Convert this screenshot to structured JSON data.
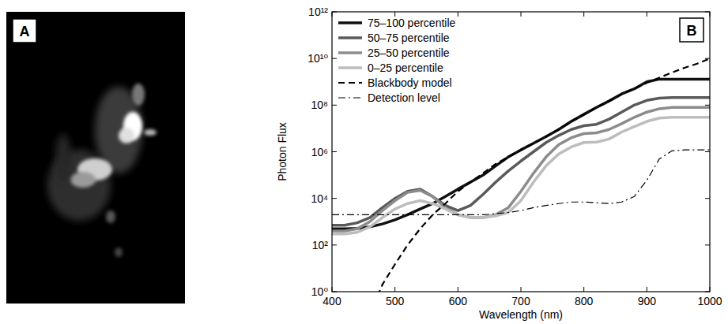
{
  "image_panel": {
    "label": "A"
  },
  "chart_data": {
    "type": "line",
    "panel_label": "B",
    "x_label": "Wavelength (nm)",
    "y_label": "Photon Flux",
    "x": [
      400,
      420,
      440,
      460,
      480,
      500,
      520,
      540,
      560,
      580,
      600,
      620,
      640,
      660,
      680,
      700,
      720,
      740,
      760,
      780,
      800,
      820,
      840,
      860,
      880,
      900,
      920,
      940,
      960,
      980,
      1000
    ],
    "series": [
      {
        "name": "75–100 percentile",
        "color": "#111111",
        "line_style": "solid",
        "values": [
          500,
          500,
          520,
          600,
          800,
          1200,
          2000,
          3500,
          6000,
          12000,
          25000,
          50000,
          100000,
          250000,
          600000,
          1200000,
          2300000,
          4500000,
          9000000,
          20000000,
          40000000,
          80000000,
          150000000,
          300000000,
          500000000,
          1000000000,
          1300000000,
          1300000000,
          1300000000,
          1300000000,
          1300000000
        ]
      },
      {
        "name": "50–75 percentile",
        "color": "#5a5a5a",
        "line_style": "solid",
        "values": [
          700,
          700,
          900,
          1500,
          4000,
          10000,
          20000,
          25000,
          12000,
          5000,
          3000,
          5000,
          15000,
          50000,
          150000,
          400000,
          1000000,
          2500000,
          5000000,
          9000000,
          13000000,
          15000000,
          25000000,
          50000000,
          100000000,
          160000000,
          200000000,
          210000000,
          210000000,
          210000000,
          210000000
        ]
      },
      {
        "name": "25–50 percentile",
        "color": "#8c8c8c",
        "line_style": "solid",
        "values": [
          400,
          400,
          500,
          1000,
          3000,
          8000,
          18000,
          22000,
          12000,
          4000,
          2000,
          1500,
          1500,
          2000,
          4000,
          20000,
          120000,
          600000,
          2000000,
          4000000,
          6000000,
          6500000,
          9000000,
          16000000,
          30000000,
          50000000,
          70000000,
          80000000,
          80000000,
          80000000,
          80000000
        ]
      },
      {
        "name": "0–25 percentile",
        "color": "#bdbdbd",
        "line_style": "solid",
        "values": [
          300,
          300,
          350,
          600,
          1500,
          3500,
          6000,
          8000,
          6000,
          3500,
          2000,
          1500,
          1500,
          1800,
          2500,
          8000,
          50000,
          250000,
          800000,
          1600000,
          2500000,
          2600000,
          3500000,
          7000000,
          12000000,
          20000000,
          28000000,
          30000000,
          30000000,
          30000000,
          30000000
        ]
      },
      {
        "name": "Blackbody model",
        "color": "#000000",
        "line_style": "dashed",
        "values": [
          null,
          null,
          null,
          0.1,
          2,
          15,
          100,
          500,
          2000,
          6000,
          20000,
          50000,
          120000,
          300000,
          600000,
          1200000,
          2300000,
          4500000,
          9000000,
          20000000,
          40000000,
          80000000,
          150000000,
          300000000,
          500000000,
          900000000,
          1500000000,
          2500000000,
          4000000000,
          6000000000,
          10000000000
        ]
      },
      {
        "name": "Detection level",
        "color": "#000000",
        "line_style": "dashdot",
        "values": [
          2000,
          2000,
          2000,
          2000,
          2000,
          2000,
          2000,
          2000,
          2000,
          2000,
          2000,
          2000,
          2000,
          2200,
          2500,
          3000,
          4000,
          5000,
          6000,
          7000,
          7000,
          6500,
          6000,
          7000,
          12000,
          60000,
          500000,
          1100000,
          1200000,
          1200000,
          1200000
        ]
      }
    ],
    "xlim": [
      400,
      1000
    ],
    "ylim": [
      1,
      1000000000000
    ],
    "xticks": [
      400,
      500,
      600,
      700,
      800,
      900,
      1000
    ],
    "yticks": [
      {
        "value": 1,
        "label": "10⁰"
      },
      {
        "value": 100,
        "label": "10²"
      },
      {
        "value": 10000,
        "label": "10⁴"
      },
      {
        "value": 1000000,
        "label": "10⁶"
      },
      {
        "value": 100000000,
        "label": "10⁸"
      },
      {
        "value": 10000000000,
        "label": "10¹⁰"
      },
      {
        "value": 1000000000000,
        "label": "10¹²"
      }
    ],
    "log": "y",
    "grid": false,
    "legend": "upper-left"
  }
}
